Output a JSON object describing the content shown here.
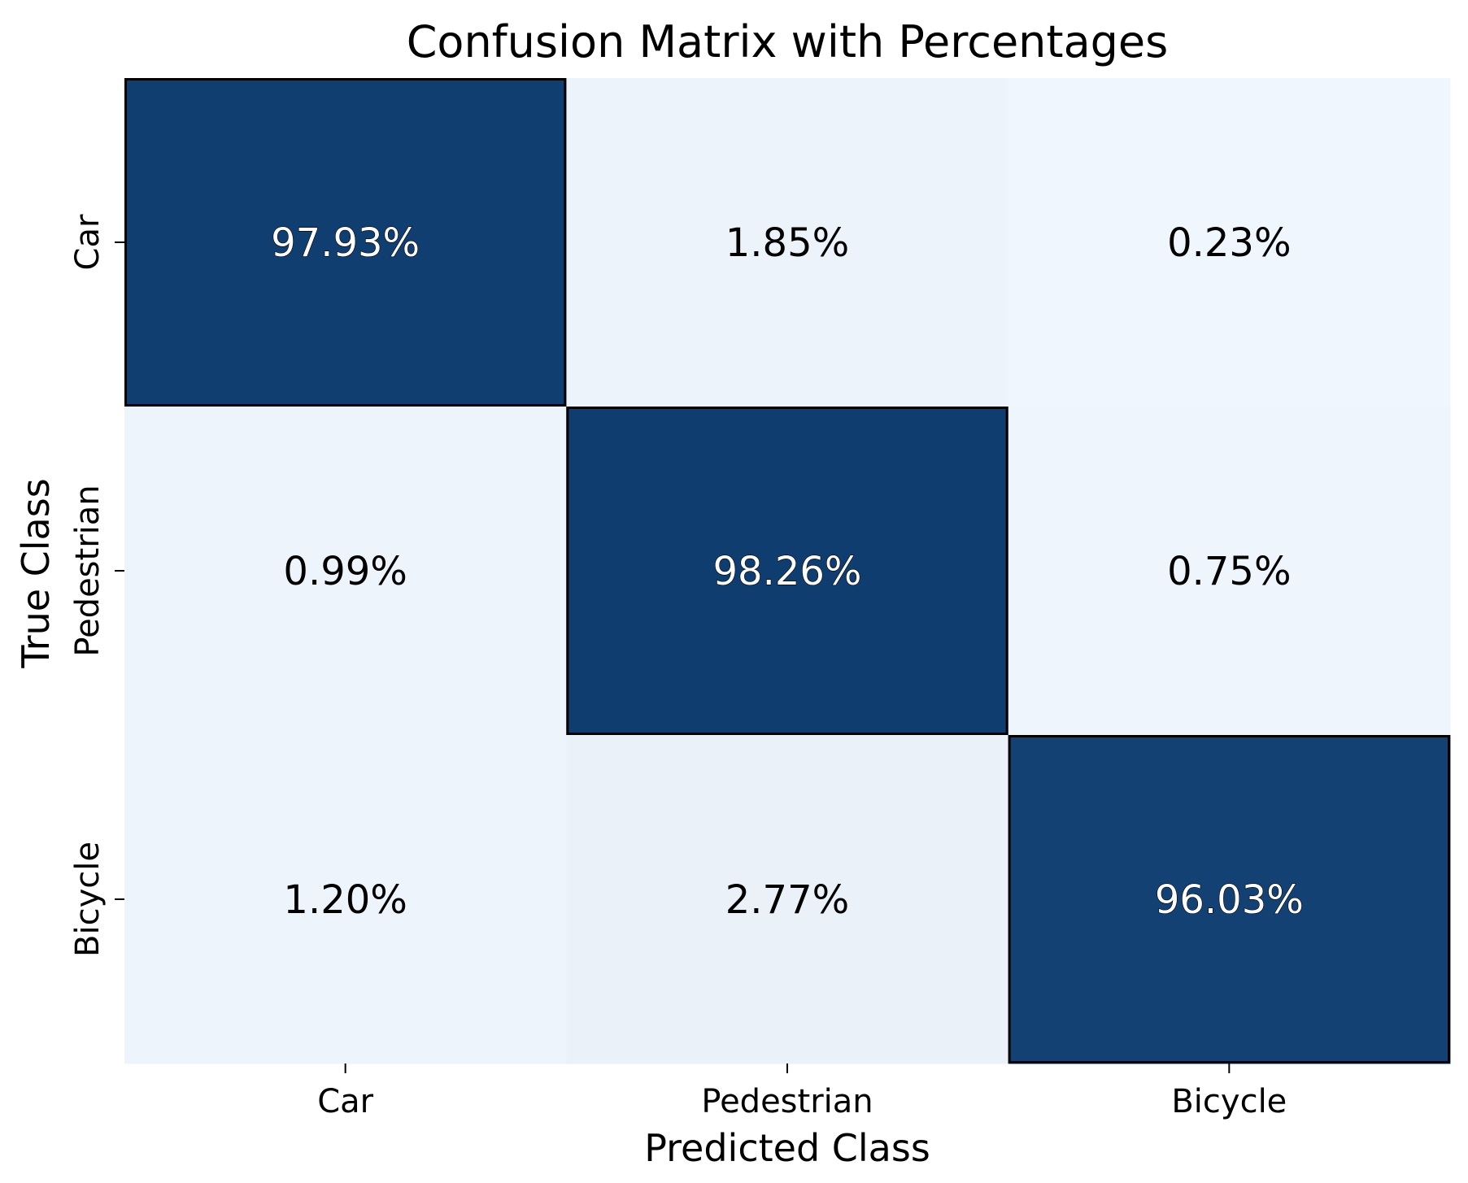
{
  "chart_data": {
    "type": "heatmap",
    "title": "Confusion Matrix with Percentages",
    "xlabel": "Predicted Class",
    "ylabel": "True Class",
    "x_categories": [
      "Car",
      "Pedestrian",
      "Bicycle"
    ],
    "y_categories": [
      "Car",
      "Pedestrian",
      "Bicycle"
    ],
    "values": [
      [
        97.93,
        1.85,
        0.23
      ],
      [
        0.99,
        98.26,
        0.75
      ],
      [
        1.2,
        2.77,
        96.03
      ]
    ],
    "value_labels": [
      [
        "97.93%",
        "1.85%",
        "0.23%"
      ],
      [
        "0.99%",
        "98.26%",
        "0.75%"
      ],
      [
        "1.20%",
        "2.77%",
        "96.03%"
      ]
    ],
    "colormap": "Blues",
    "value_range": [
      0,
      100
    ],
    "colorbar": false,
    "grid": false,
    "colors": {
      "low": "#f0f6fd",
      "high": "#0b3a6e",
      "dark_text": "#000000",
      "light_text": "#ffffff"
    }
  }
}
